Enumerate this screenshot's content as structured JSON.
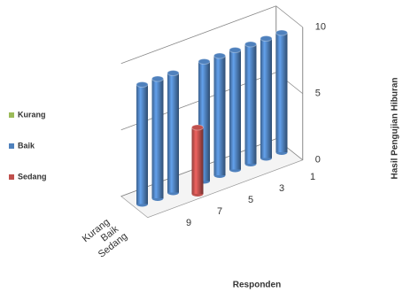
{
  "chart_data": {
    "type": "bar3d",
    "x_label": "Responden",
    "y_label": "Hasil Pengujian Hiburan",
    "categories": [
      "1",
      null,
      "3",
      null,
      "5",
      null,
      "7",
      null,
      "9",
      null
    ],
    "series": [
      {
        "name": "Kurang",
        "color": "#9bbb59",
        "values": [
          0,
          0,
          0,
          0,
          0,
          0,
          0,
          0,
          0,
          0
        ]
      },
      {
        "name": "Baik",
        "color": "#4f81bd",
        "values": [
          9,
          9,
          9,
          9,
          9,
          9,
          0,
          9,
          9,
          9
        ]
      },
      {
        "name": "Sedang",
        "color": "#c0504d",
        "values": [
          0,
          0,
          0,
          0,
          0,
          0,
          5,
          0,
          0,
          0
        ]
      }
    ],
    "ylim": [
      0,
      10
    ],
    "yticks": [
      0,
      5,
      10
    ],
    "grid": true,
    "legend": "left"
  }
}
